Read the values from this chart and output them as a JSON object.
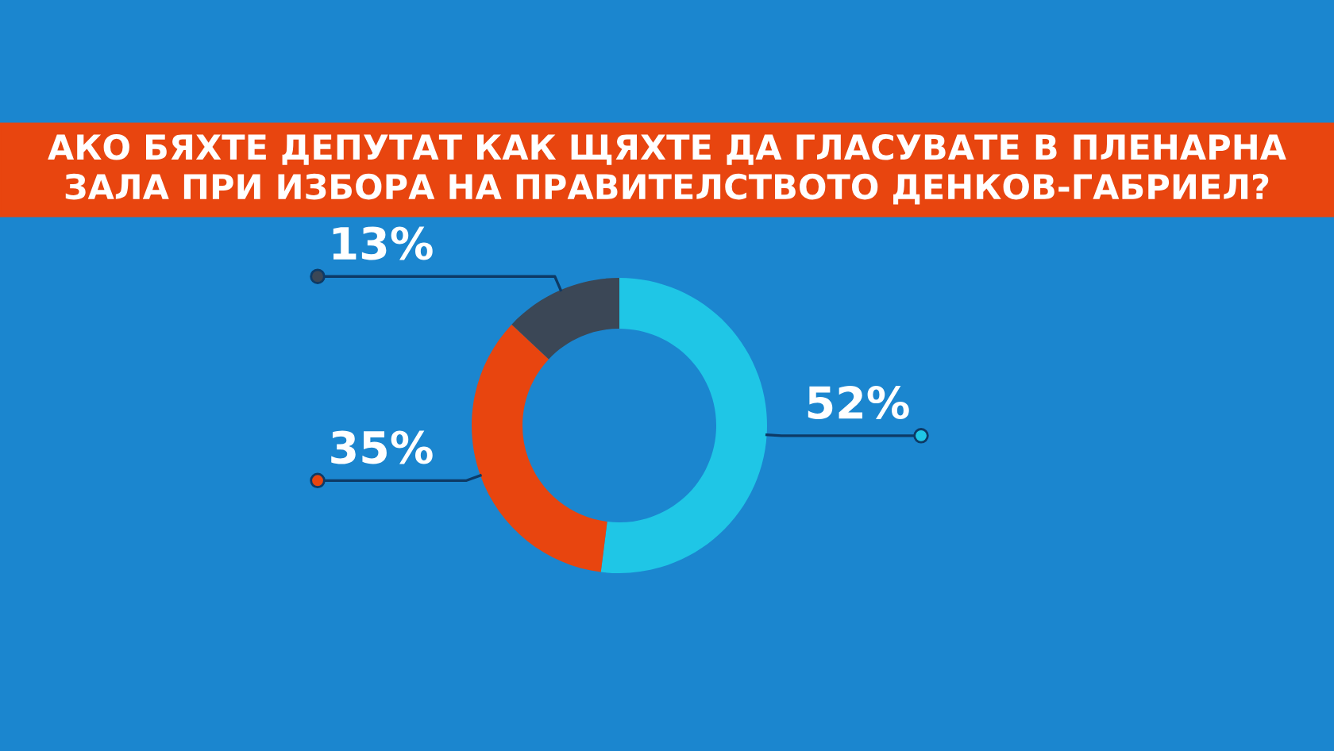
{
  "chart_data": {
    "type": "donut",
    "title": "АКО БЯХТЕ ДЕПУТАТ КАК ЩЯХТЕ ДА ГЛАСУВАТЕ В ПЛЕНАРНА\nЗАЛА ПРИ ИЗБОРА НА ПРАВИТЕЛСТВОТО ДЕНКОВ-ГАБРИЕЛ?",
    "categories": [
      null,
      null,
      null
    ],
    "values": [
      52,
      35,
      13
    ],
    "colors": [
      "#1fc6e6",
      "#e8450f",
      "#3b4756"
    ],
    "value_labels": [
      "52%",
      "35%",
      "13%"
    ]
  }
}
